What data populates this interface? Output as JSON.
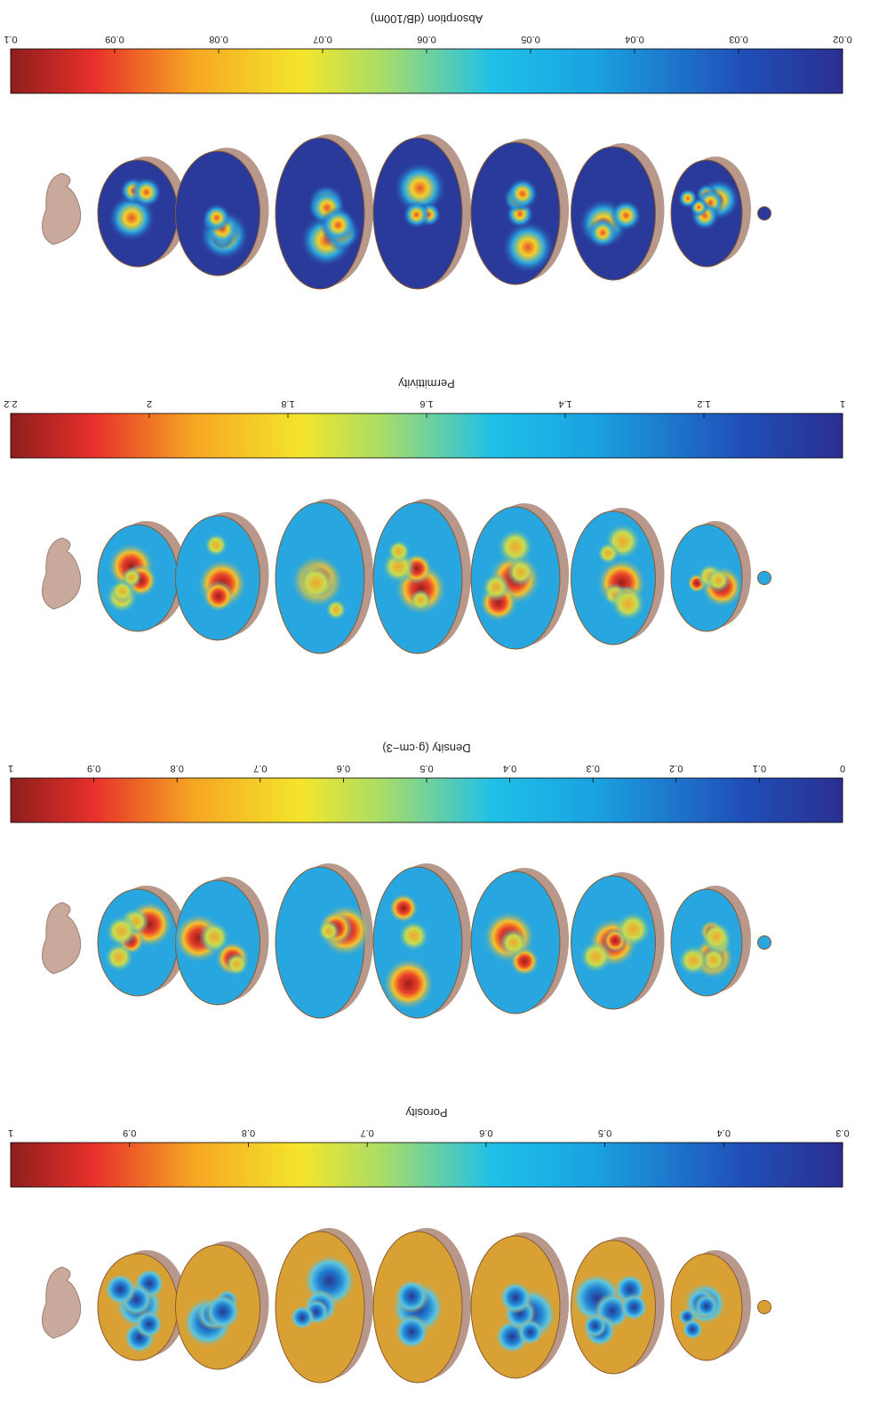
{
  "chart_data": [
    {
      "type": "colorbar",
      "label": "Absorption (dB/100m)",
      "clim": [
        0.02,
        0.1
      ],
      "ticks": [
        0.02,
        0.03,
        0.04,
        0.05,
        0.06,
        0.07,
        0.08,
        0.09,
        0.1
      ]
    },
    {
      "type": "colorbar",
      "label": "Permittivity",
      "clim": [
        1,
        2.2
      ],
      "ticks": [
        1,
        1.2,
        1.4,
        1.6,
        1.8,
        2,
        2.2
      ]
    },
    {
      "type": "colorbar",
      "label": "Density (g·cm−3)",
      "clim": [
        0,
        1
      ],
      "ticks": [
        0,
        0.1,
        0.2,
        0.3,
        0.4,
        0.5,
        0.6,
        0.7,
        0.8,
        0.9,
        1
      ]
    },
    {
      "type": "colorbar",
      "label": "Porosity",
      "clim": [
        0.3,
        1
      ],
      "ticks": [
        0.3,
        0.4,
        0.5,
        0.6,
        0.7,
        0.8,
        0.9,
        1
      ]
    }
  ]
}
